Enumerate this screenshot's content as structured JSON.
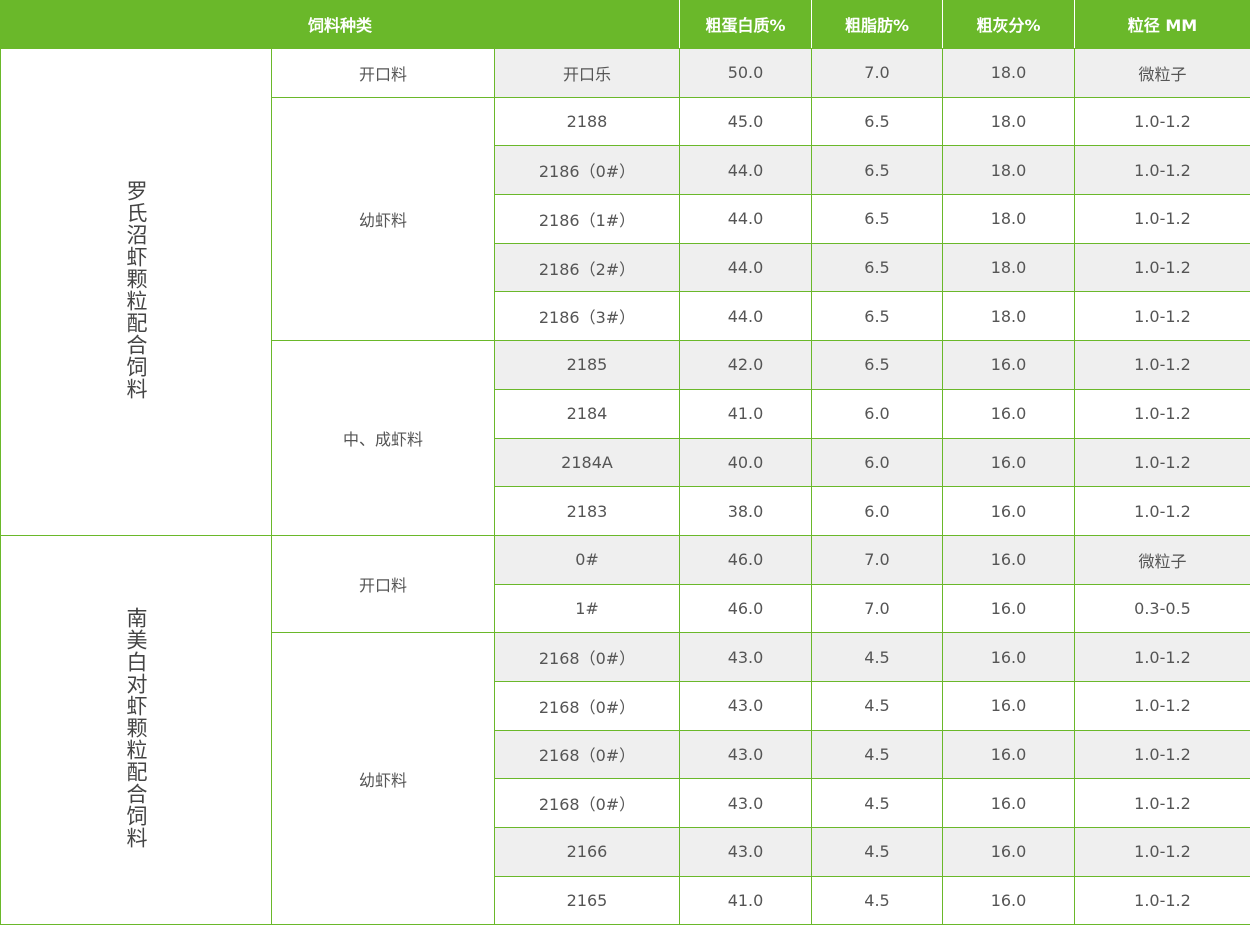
{
  "header": {
    "category": "饲料种类",
    "protein": "粗蛋白质%",
    "fat": "粗脂肪%",
    "ash": "粗灰分%",
    "size": "粒径 MM"
  },
  "colors": {
    "accent": "#6ab82a",
    "stripe": "#efefef"
  },
  "groups": [
    {
      "series": "罗氏沼虾颗粒配合饲料",
      "stages": [
        {
          "stage": "开口料",
          "rows": [
            [
              "开口乐",
              "50.0",
              "7.0",
              "18.0",
              "微粒子"
            ]
          ]
        },
        {
          "stage": "幼虾料",
          "rows": [
            [
              "2188",
              "45.0",
              "6.5",
              "18.0",
              "1.0-1.2"
            ],
            [
              "2186（0#）",
              "44.0",
              "6.5",
              "18.0",
              "1.0-1.2"
            ],
            [
              "2186（1#）",
              "44.0",
              "6.5",
              "18.0",
              "1.0-1.2"
            ],
            [
              "2186（2#）",
              "44.0",
              "6.5",
              "18.0",
              "1.0-1.2"
            ],
            [
              "2186（3#）",
              "44.0",
              "6.5",
              "18.0",
              "1.0-1.2"
            ]
          ]
        },
        {
          "stage": "中、成虾料",
          "rows": [
            [
              "2185",
              "42.0",
              "6.5",
              "16.0",
              "1.0-1.2"
            ],
            [
              "2184",
              "41.0",
              "6.0",
              "16.0",
              "1.0-1.2"
            ],
            [
              "2184A",
              "40.0",
              "6.0",
              "16.0",
              "1.0-1.2"
            ],
            [
              "2183",
              "38.0",
              "6.0",
              "16.0",
              "1.0-1.2"
            ]
          ]
        }
      ]
    },
    {
      "series": "南美白对虾颗粒配合饲料",
      "stages": [
        {
          "stage": "开口料",
          "rows": [
            [
              "0#",
              "46.0",
              "7.0",
              "16.0",
              "微粒子"
            ],
            [
              "1#",
              "46.0",
              "7.0",
              "16.0",
              "0.3-0.5"
            ]
          ]
        },
        {
          "stage": "幼虾料",
          "rows": [
            [
              "2168（0#）",
              "43.0",
              "4.5",
              "16.0",
              "1.0-1.2"
            ],
            [
              "2168（0#）",
              "43.0",
              "4.5",
              "16.0",
              "1.0-1.2"
            ],
            [
              "2168（0#）",
              "43.0",
              "4.5",
              "16.0",
              "1.0-1.2"
            ],
            [
              "2168（0#）",
              "43.0",
              "4.5",
              "16.0",
              "1.0-1.2"
            ],
            [
              "2166",
              "43.0",
              "4.5",
              "16.0",
              "1.0-1.2"
            ],
            [
              "2165",
              "41.0",
              "4.5",
              "16.0",
              "1.0-1.2"
            ]
          ]
        }
      ]
    }
  ]
}
